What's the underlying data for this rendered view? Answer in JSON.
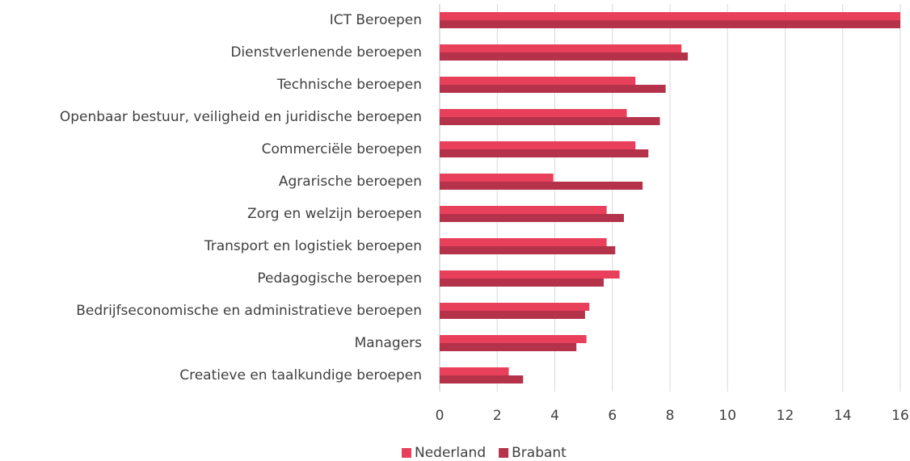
{
  "chart_data": {
    "type": "hbar",
    "categories": [
      "ICT Beroepen",
      "Dienstverlenende beroepen",
      "Technische beroepen",
      "Openbaar bestuur, veiligheid en juridische beroepen",
      "Commerciële beroepen",
      "Agrarische beroepen",
      "Zorg en welzijn beroepen",
      "Transport en logistiek beroepen",
      "Pedagogische beroepen",
      "Bedrijfseconomische en administratieve beroepen",
      "Managers",
      "Creatieve en taalkundige beroepen"
    ],
    "series": [
      {
        "name": "Nederland",
        "color": "#e8405a",
        "values": [
          16,
          8.4,
          6.8,
          6.5,
          6.8,
          3.95,
          5.8,
          5.8,
          6.25,
          5.2,
          5.1,
          2.4
        ]
      },
      {
        "name": "Brabant",
        "color": "#b5334a",
        "values": [
          16,
          8.62,
          7.85,
          7.65,
          7.25,
          7.05,
          6.4,
          6.1,
          5.7,
          5.05,
          4.75,
          2.9
        ]
      }
    ],
    "xlim": [
      0,
      16
    ],
    "xticks": [
      0,
      2,
      4,
      6,
      8,
      10,
      12,
      14,
      16
    ],
    "grid": true,
    "legend": "bottom"
  }
}
